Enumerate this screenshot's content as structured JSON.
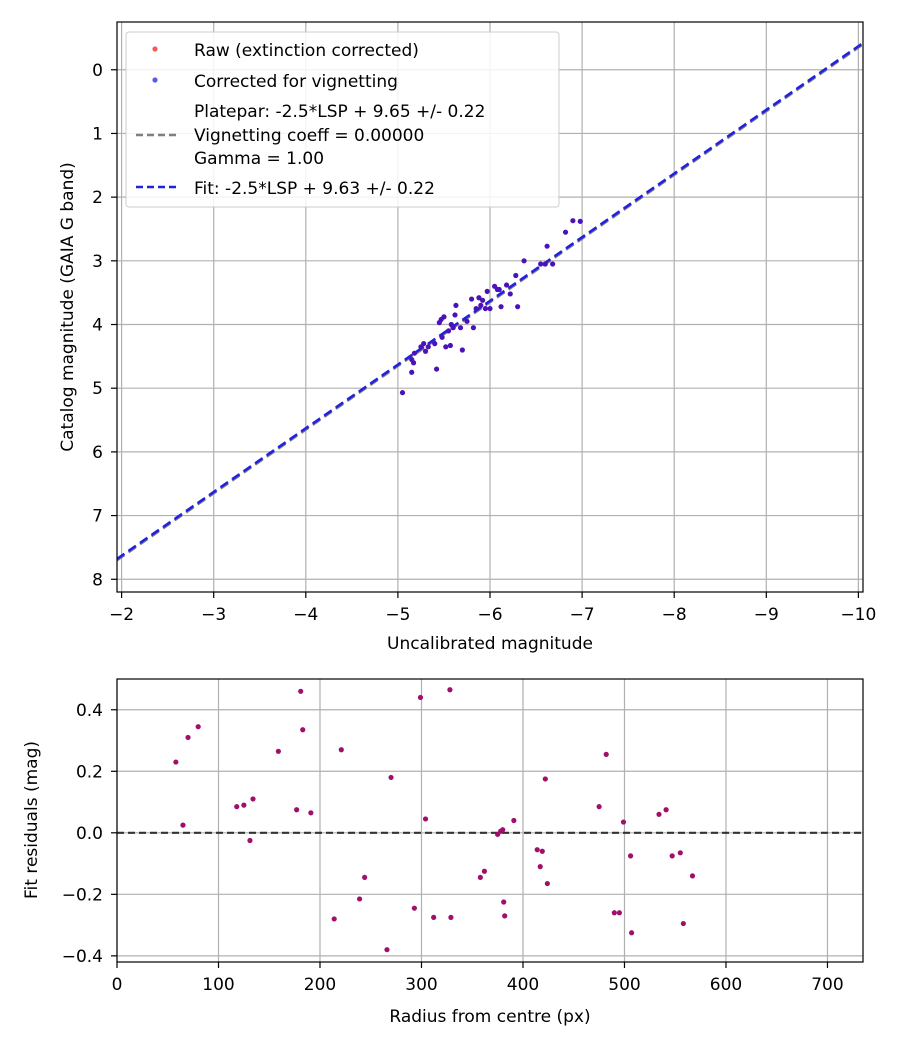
{
  "colors": {
    "raw": "#f05a5a",
    "corrected": "#5a5af0",
    "overlap": "#4b12b9",
    "platepar_line": "#7f7f7f",
    "fit_line": "#2222dd",
    "residual": "#a0106a",
    "zero_line": "#333333"
  },
  "chart_data": [
    {
      "type": "scatter",
      "title": "",
      "xlabel": "Uncalibrated magnitude",
      "ylabel": "Catalog magnitude (GAIA G band)",
      "xlim": [
        -1.95,
        -10.05
      ],
      "ylim": [
        8.2,
        -0.75
      ],
      "x_inverted": true,
      "y_inverted": true,
      "grid": true,
      "xticks": [
        -2,
        -3,
        -4,
        -5,
        -6,
        -7,
        -8,
        -9,
        -10
      ],
      "xtick_labels": [
        "−2",
        "−3",
        "−4",
        "−5",
        "−6",
        "−7",
        "−8",
        "−9",
        "−10"
      ],
      "yticks": [
        0,
        1,
        2,
        3,
        4,
        5,
        6,
        7,
        8
      ],
      "ytick_labels": [
        "0",
        "1",
        "2",
        "3",
        "4",
        "5",
        "6",
        "7",
        "8"
      ],
      "legend_placement": "top-left",
      "legend": {
        "raw": "Raw (extinction corrected)",
        "corrected": "Corrected for vignetting",
        "platepar_lines": [
          "Platepar: -2.5*LSP + 9.65 +/- 0.22",
          "Vignetting coeff = 0.00000",
          "Gamma = 1.00"
        ],
        "fit": "Fit: -2.5*LSP + 9.63 +/- 0.22"
      },
      "fit_line": {
        "slope": 1.0,
        "intercept": 9.63
      },
      "platepar_line": {
        "slope": 1.0,
        "intercept": 9.65
      },
      "points": [
        [
          -5.05,
          5.07
        ],
        [
          -5.15,
          4.75
        ],
        [
          -5.15,
          4.55
        ],
        [
          -5.17,
          4.6
        ],
        [
          -5.18,
          4.45
        ],
        [
          -5.25,
          4.35
        ],
        [
          -5.28,
          4.3
        ],
        [
          -5.3,
          4.42
        ],
        [
          -5.33,
          4.35
        ],
        [
          -5.4,
          4.3
        ],
        [
          -5.42,
          4.7
        ],
        [
          -5.45,
          3.97
        ],
        [
          -5.47,
          3.92
        ],
        [
          -5.48,
          4.2
        ],
        [
          -5.5,
          3.88
        ],
        [
          -5.52,
          4.35
        ],
        [
          -5.55,
          4.1
        ],
        [
          -5.57,
          4.33
        ],
        [
          -5.6,
          4.05
        ],
        [
          -5.62,
          3.85
        ],
        [
          -5.63,
          3.7
        ],
        [
          -5.68,
          4.05
        ],
        [
          -5.7,
          4.4
        ],
        [
          -5.75,
          3.95
        ],
        [
          -5.8,
          3.6
        ],
        [
          -5.82,
          4.05
        ],
        [
          -5.85,
          3.75
        ],
        [
          -5.9,
          3.7
        ],
        [
          -5.92,
          3.62
        ],
        [
          -5.95,
          3.75
        ],
        [
          -5.97,
          3.48
        ],
        [
          -6.0,
          3.75
        ],
        [
          -6.05,
          3.4
        ],
        [
          -6.1,
          3.45
        ],
        [
          -6.12,
          3.72
        ],
        [
          -6.18,
          3.38
        ],
        [
          -6.22,
          3.52
        ],
        [
          -6.28,
          3.23
        ],
        [
          -6.3,
          3.72
        ],
        [
          -6.37,
          3.0
        ],
        [
          -6.55,
          3.05
        ],
        [
          -6.6,
          3.05
        ],
        [
          -6.62,
          2.77
        ],
        [
          -6.68,
          3.05
        ],
        [
          -6.82,
          2.55
        ],
        [
          -6.9,
          2.37
        ],
        [
          -6.98,
          2.38
        ],
        [
          -5.58,
          4.0
        ],
        [
          -5.88,
          3.58
        ],
        [
          -6.08,
          3.45
        ]
      ]
    },
    {
      "type": "scatter",
      "title": "",
      "xlabel": "Radius from centre (px)",
      "ylabel": "Fit residuals (mag)",
      "xlim": [
        0,
        735
      ],
      "ylim": [
        -0.42,
        0.5
      ],
      "grid": true,
      "xticks": [
        0,
        100,
        200,
        300,
        400,
        500,
        600,
        700
      ],
      "xtick_labels": [
        "0",
        "100",
        "200",
        "300",
        "400",
        "500",
        "600",
        "700"
      ],
      "yticks": [
        -0.4,
        -0.2,
        0.0,
        0.2,
        0.4
      ],
      "ytick_labels": [
        "−0.4",
        "−0.2",
        "0.0",
        "0.2",
        "0.4"
      ],
      "zero_line": 0,
      "points": [
        [
          58,
          0.23
        ],
        [
          65,
          0.025
        ],
        [
          70,
          0.31
        ],
        [
          80,
          0.345
        ],
        [
          118,
          0.085
        ],
        [
          125,
          0.09
        ],
        [
          131,
          -0.025
        ],
        [
          134,
          0.11
        ],
        [
          159,
          0.265
        ],
        [
          177,
          0.075
        ],
        [
          181,
          0.46
        ],
        [
          183,
          0.335
        ],
        [
          191,
          0.065
        ],
        [
          214,
          -0.28
        ],
        [
          221,
          0.27
        ],
        [
          239,
          -0.215
        ],
        [
          244,
          -0.145
        ],
        [
          266,
          -0.38
        ],
        [
          270,
          0.18
        ],
        [
          293,
          -0.245
        ],
        [
          299,
          0.44
        ],
        [
          304,
          0.045
        ],
        [
          312,
          -0.275
        ],
        [
          328,
          0.465
        ],
        [
          329,
          -0.275
        ],
        [
          358,
          -0.145
        ],
        [
          362,
          -0.125
        ],
        [
          375,
          -0.005
        ],
        [
          378,
          0.005
        ],
        [
          380,
          0.01
        ],
        [
          381,
          -0.225
        ],
        [
          382,
          -0.27
        ],
        [
          391,
          0.04
        ],
        [
          414,
          -0.055
        ],
        [
          417,
          -0.11
        ],
        [
          419,
          -0.06
        ],
        [
          422,
          0.175
        ],
        [
          424,
          -0.165
        ],
        [
          475,
          0.085
        ],
        [
          482,
          0.255
        ],
        [
          490,
          -0.26
        ],
        [
          495,
          -0.26
        ],
        [
          499,
          0.035
        ],
        [
          506,
          -0.075
        ],
        [
          507,
          -0.325
        ],
        [
          534,
          0.06
        ],
        [
          541,
          0.075
        ],
        [
          547,
          -0.075
        ],
        [
          555,
          -0.065
        ],
        [
          558,
          -0.295
        ],
        [
          567,
          -0.14
        ]
      ]
    }
  ]
}
